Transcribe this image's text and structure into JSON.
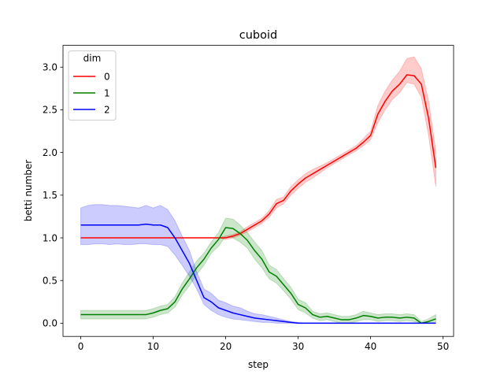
{
  "chart_data": {
    "type": "line",
    "title": "cuboid",
    "xlabel": "step",
    "ylabel": "betti number",
    "xlim": [
      -2.45,
      51.45
    ],
    "ylim": [
      -0.155,
      3.255
    ],
    "xticks": [
      0,
      10,
      20,
      30,
      40,
      50
    ],
    "yticks": [
      0.0,
      0.5,
      1.0,
      1.5,
      2.0,
      2.5,
      3.0
    ],
    "xtick_labels": [
      "0",
      "10",
      "20",
      "30",
      "40",
      "50"
    ],
    "ytick_labels": [
      "0.0",
      "0.5",
      "1.0",
      "1.5",
      "2.0",
      "2.5",
      "3.0"
    ],
    "legend": {
      "title": "dim",
      "position": "upper left"
    },
    "grid": false,
    "series": [
      {
        "name": "0",
        "color": "#ff0000",
        "x": [
          0,
          1,
          2,
          3,
          4,
          5,
          6,
          7,
          8,
          9,
          10,
          11,
          12,
          13,
          14,
          15,
          16,
          17,
          18,
          19,
          20,
          21,
          22,
          23,
          24,
          25,
          26,
          27,
          28,
          29,
          30,
          31,
          32,
          33,
          34,
          35,
          36,
          37,
          38,
          39,
          40,
          41,
          42,
          43,
          44,
          45,
          46,
          47,
          48,
          49
        ],
        "y": [
          1.0,
          1.0,
          1.0,
          1.0,
          1.0,
          1.0,
          1.0,
          1.0,
          1.0,
          1.0,
          1.0,
          1.0,
          1.0,
          1.0,
          1.0,
          1.0,
          1.0,
          1.0,
          1.0,
          1.0,
          1.0,
          1.02,
          1.05,
          1.1,
          1.15,
          1.2,
          1.28,
          1.4,
          1.44,
          1.55,
          1.63,
          1.7,
          1.75,
          1.8,
          1.85,
          1.9,
          1.95,
          2.0,
          2.05,
          2.12,
          2.2,
          2.45,
          2.6,
          2.72,
          2.8,
          2.91,
          2.9,
          2.8,
          2.4,
          1.82
        ],
        "lower": [
          1.0,
          1.0,
          1.0,
          1.0,
          1.0,
          1.0,
          1.0,
          1.0,
          1.0,
          1.0,
          1.0,
          1.0,
          1.0,
          1.0,
          1.0,
          1.0,
          1.0,
          1.0,
          1.0,
          1.0,
          0.98,
          1.0,
          1.03,
          1.07,
          1.12,
          1.17,
          1.24,
          1.35,
          1.4,
          1.5,
          1.58,
          1.65,
          1.7,
          1.76,
          1.82,
          1.87,
          1.92,
          1.97,
          2.02,
          2.08,
          2.15,
          2.35,
          2.5,
          2.62,
          2.7,
          2.82,
          2.8,
          2.65,
          2.2,
          1.6
        ],
        "upper": [
          1.0,
          1.0,
          1.0,
          1.0,
          1.0,
          1.0,
          1.0,
          1.0,
          1.0,
          1.0,
          1.0,
          1.0,
          1.0,
          1.0,
          1.0,
          1.0,
          1.0,
          1.0,
          1.0,
          1.0,
          1.02,
          1.04,
          1.07,
          1.13,
          1.18,
          1.23,
          1.32,
          1.45,
          1.48,
          1.6,
          1.68,
          1.75,
          1.8,
          1.84,
          1.88,
          1.93,
          1.98,
          2.03,
          2.08,
          2.16,
          2.25,
          2.55,
          2.72,
          2.85,
          2.95,
          3.1,
          3.12,
          2.98,
          2.6,
          2.02
        ]
      },
      {
        "name": "1",
        "color": "#008000",
        "x": [
          0,
          1,
          2,
          3,
          4,
          5,
          6,
          7,
          8,
          9,
          10,
          11,
          12,
          13,
          14,
          15,
          16,
          17,
          18,
          19,
          20,
          21,
          22,
          23,
          24,
          25,
          26,
          27,
          28,
          29,
          30,
          31,
          32,
          33,
          34,
          35,
          36,
          37,
          38,
          39,
          40,
          41,
          42,
          43,
          44,
          45,
          46,
          47,
          48,
          49
        ],
        "y": [
          0.1,
          0.1,
          0.1,
          0.1,
          0.1,
          0.1,
          0.1,
          0.1,
          0.1,
          0.1,
          0.12,
          0.15,
          0.17,
          0.25,
          0.4,
          0.52,
          0.65,
          0.75,
          0.88,
          0.98,
          1.12,
          1.11,
          1.05,
          0.97,
          0.85,
          0.75,
          0.6,
          0.55,
          0.45,
          0.35,
          0.22,
          0.18,
          0.1,
          0.07,
          0.08,
          0.06,
          0.04,
          0.04,
          0.06,
          0.09,
          0.08,
          0.06,
          0.07,
          0.07,
          0.06,
          0.07,
          0.06,
          0.0,
          0.02,
          0.05
        ],
        "lower": [
          0.05,
          0.05,
          0.05,
          0.05,
          0.05,
          0.05,
          0.05,
          0.05,
          0.05,
          0.05,
          0.07,
          0.1,
          0.12,
          0.19,
          0.33,
          0.44,
          0.57,
          0.68,
          0.82,
          0.9,
          1.02,
          1.0,
          0.95,
          0.88,
          0.75,
          0.65,
          0.52,
          0.47,
          0.38,
          0.28,
          0.16,
          0.12,
          0.06,
          0.03,
          0.04,
          0.02,
          0.0,
          0.0,
          0.02,
          0.04,
          0.04,
          0.02,
          0.03,
          0.03,
          0.02,
          0.03,
          0.02,
          0.0,
          0.0,
          0.0
        ],
        "upper": [
          0.15,
          0.15,
          0.15,
          0.15,
          0.15,
          0.15,
          0.15,
          0.15,
          0.15,
          0.15,
          0.17,
          0.2,
          0.22,
          0.31,
          0.47,
          0.6,
          0.73,
          0.82,
          0.95,
          1.06,
          1.23,
          1.22,
          1.15,
          1.06,
          0.95,
          0.85,
          0.68,
          0.63,
          0.52,
          0.42,
          0.28,
          0.24,
          0.14,
          0.11,
          0.12,
          0.1,
          0.08,
          0.08,
          0.1,
          0.14,
          0.12,
          0.1,
          0.11,
          0.11,
          0.1,
          0.11,
          0.1,
          0.02,
          0.05,
          0.1
        ]
      },
      {
        "name": "2",
        "color": "#0000ff",
        "x": [
          0,
          1,
          2,
          3,
          4,
          5,
          6,
          7,
          8,
          9,
          10,
          11,
          12,
          13,
          14,
          15,
          16,
          17,
          18,
          19,
          20,
          21,
          22,
          23,
          24,
          25,
          26,
          27,
          28,
          29,
          30,
          31,
          32,
          33,
          34,
          35,
          36,
          37,
          38,
          39,
          40,
          41,
          42,
          43,
          44,
          45,
          46,
          47,
          48,
          49
        ],
        "y": [
          1.15,
          1.15,
          1.15,
          1.15,
          1.15,
          1.15,
          1.15,
          1.15,
          1.15,
          1.16,
          1.15,
          1.15,
          1.12,
          1.0,
          0.85,
          0.7,
          0.5,
          0.3,
          0.25,
          0.18,
          0.15,
          0.12,
          0.1,
          0.08,
          0.06,
          0.05,
          0.04,
          0.03,
          0.02,
          0.01,
          0.0,
          0.0,
          0.0,
          0.0,
          0.0,
          0.0,
          0.0,
          0.0,
          0.0,
          0.0,
          0.0,
          0.0,
          0.0,
          0.0,
          0.0,
          0.0,
          0.0,
          0.0,
          0.0,
          0.0
        ],
        "lower": [
          0.92,
          0.92,
          0.93,
          0.93,
          0.92,
          0.93,
          0.92,
          0.92,
          0.93,
          0.93,
          0.92,
          0.92,
          0.9,
          0.8,
          0.68,
          0.55,
          0.4,
          0.22,
          0.15,
          0.1,
          0.07,
          0.05,
          0.04,
          0.03,
          0.02,
          0.01,
          0.01,
          0.0,
          0.0,
          0.0,
          0.0,
          0.0,
          0.0,
          0.0,
          0.0,
          0.0,
          0.0,
          0.0,
          0.0,
          0.0,
          0.0,
          0.0,
          0.0,
          0.0,
          0.0,
          0.0,
          0.0,
          0.0,
          0.0,
          0.0
        ],
        "upper": [
          1.35,
          1.38,
          1.39,
          1.39,
          1.38,
          1.38,
          1.37,
          1.36,
          1.35,
          1.38,
          1.35,
          1.38,
          1.33,
          1.2,
          1.02,
          0.85,
          0.6,
          0.4,
          0.35,
          0.27,
          0.24,
          0.2,
          0.18,
          0.14,
          0.11,
          0.1,
          0.08,
          0.06,
          0.04,
          0.02,
          0.01,
          0.0,
          0.0,
          0.0,
          0.0,
          0.0,
          0.0,
          0.0,
          0.0,
          0.0,
          0.0,
          0.0,
          0.0,
          0.0,
          0.0,
          0.0,
          0.0,
          0.0,
          0.0,
          0.0
        ]
      }
    ]
  }
}
